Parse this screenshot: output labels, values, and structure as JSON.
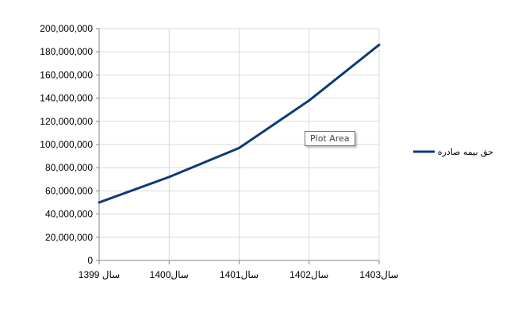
{
  "chart_data": {
    "type": "line",
    "title": "",
    "xlabel": "",
    "ylabel": "",
    "categories": [
      "سال 1399",
      "سال1400",
      "سال1401",
      "سال1402",
      "سال1403"
    ],
    "series": [
      {
        "name": "حق بیمه صادره",
        "values": [
          50000000,
          72000000,
          97000000,
          138000000,
          186000000
        ],
        "color": "#0d3c75"
      }
    ],
    "ylim": [
      0,
      200000000
    ],
    "yticks": [
      0,
      20000000,
      40000000,
      60000000,
      80000000,
      100000000,
      120000000,
      140000000,
      160000000,
      180000000,
      200000000
    ],
    "ytick_labels": [
      "0",
      "20,000,000",
      "40,000,000",
      "60,000,000",
      "80,000,000",
      "100,000,000",
      "120,000,000",
      "140,000,000",
      "160,000,000",
      "180,000,000",
      "200,000,000"
    ],
    "grid": true,
    "legend_position": "right"
  },
  "tooltip": {
    "text": "Plot Area"
  },
  "colors": {
    "grid": "#d9d9d9",
    "axis": "#868686"
  }
}
